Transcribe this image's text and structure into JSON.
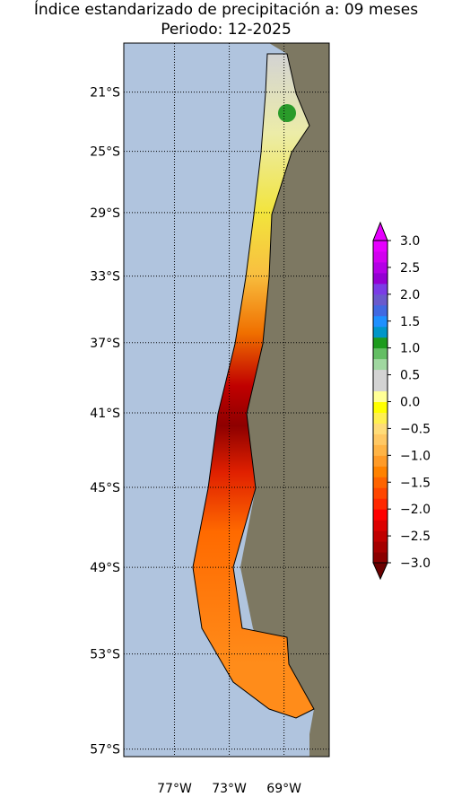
{
  "title": "Índice estandarizado de precipitación a: 09 meses",
  "subtitle": "Periodo: 12-2025",
  "map": {
    "ylim": [
      -17.6,
      -57.3
    ],
    "xlim": [
      -80.7,
      -65.7
    ],
    "lat_ticks": [
      {
        "value": -21,
        "label": "21°S"
      },
      {
        "value": -25,
        "label": "25°S"
      },
      {
        "value": -29,
        "label": "29°S"
      },
      {
        "value": -33,
        "label": "33°S"
      },
      {
        "value": -37,
        "label": "37°S"
      },
      {
        "value": -41,
        "label": "41°S"
      },
      {
        "value": -45,
        "label": "45°S"
      },
      {
        "value": -49,
        "label": "49°S"
      },
      {
        "value": -53,
        "label": "53°S"
      },
      {
        "value": -57,
        "label": "57°S"
      }
    ],
    "lon_ticks": [
      {
        "value": -77,
        "label": "77°W"
      },
      {
        "value": -73,
        "label": "73°W"
      },
      {
        "value": -69,
        "label": "69°W"
      }
    ]
  },
  "colorbar": {
    "lim": [
      -3.0,
      3.0
    ],
    "ticks": [
      {
        "value": 3.0,
        "label": "3.0"
      },
      {
        "value": 2.5,
        "label": "2.5"
      },
      {
        "value": 2.0,
        "label": "2.0"
      },
      {
        "value": 1.5,
        "label": "1.5"
      },
      {
        "value": 1.0,
        "label": "1.0"
      },
      {
        "value": 0.5,
        "label": "0.5"
      },
      {
        "value": 0.0,
        "label": "0.0"
      },
      {
        "value": -0.5,
        "label": "−0.5"
      },
      {
        "value": -1.0,
        "label": "−1.0"
      },
      {
        "value": -1.5,
        "label": "−1.5"
      },
      {
        "value": -2.0,
        "label": "−2.0"
      },
      {
        "value": -2.5,
        "label": "−2.5"
      },
      {
        "value": -3.0,
        "label": "−3.0"
      }
    ],
    "colors": [
      "#8b0000",
      "#a50000",
      "#c00000",
      "#dc0000",
      "#ff0000",
      "#ff2800",
      "#ff4600",
      "#ff6400",
      "#ff8200",
      "#ff9b28",
      "#ffb446",
      "#ffc864",
      "#ffdc78",
      "#fff050",
      "#ffff00",
      "#ffff96",
      "#d3d3d3",
      "#d3d3d3",
      "#a0d7a0",
      "#64be64",
      "#1e9b1e",
      "#0096c8",
      "#1e90ff",
      "#4169e1",
      "#6a5acd",
      "#7b3ce6",
      "#9400d3",
      "#b400e6",
      "#d200f0",
      "#e600ff"
    ],
    "under_color": "#6b0000",
    "over_color": "#e600ff"
  }
}
